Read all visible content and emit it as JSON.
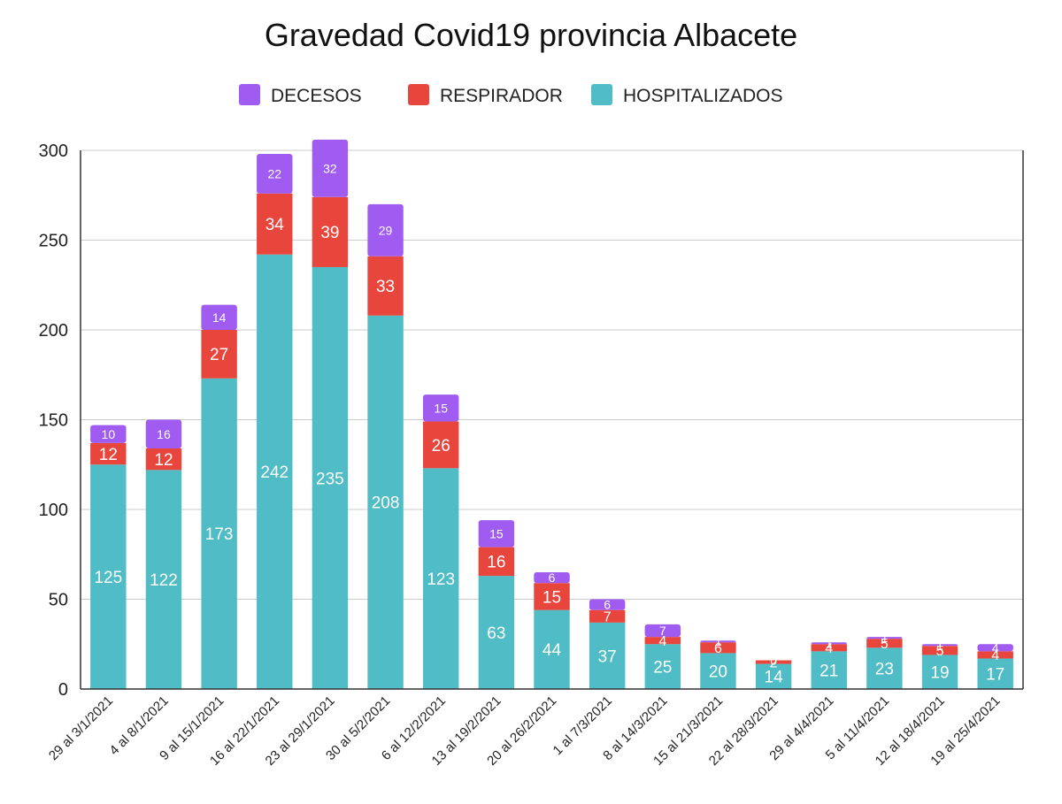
{
  "chart_data": {
    "type": "bar",
    "stacked": true,
    "title": "Gravedad Covid19 provincia Albacete",
    "xlabel": "",
    "ylabel": "",
    "ylim": [
      0,
      300
    ],
    "yticks": [
      "0",
      "50",
      "100",
      "150",
      "200",
      "250",
      "300"
    ],
    "grid": true,
    "legend_position": "top",
    "categories": [
      "29 al 3/1/2021",
      "4 al 8/1/2021",
      "9 al 15/1/2021",
      "16 al 22/1/2021",
      "23 al 29/1/2021",
      "30 al 5/2/2021",
      "6 al 12/2/2021",
      "13 al 19/2/2021",
      "20 al 26/2/2021",
      "1 al 7/3/2021",
      "8 al 14/3/2021",
      "15 al 21/3/2021",
      "22 al 28/3/2021",
      "29 al 4/4/2021",
      "5 al 11/4/2021",
      "12 al 18/4/2021",
      "19 al 25/4/2021"
    ],
    "series": [
      {
        "name": "HOSPITALIZADOS",
        "color": "#4FBCC6",
        "values": [
          125,
          122,
          173,
          242,
          235,
          208,
          123,
          63,
          44,
          37,
          25,
          20,
          14,
          21,
          23,
          19,
          17
        ]
      },
      {
        "name": "RESPIRADOR",
        "color": "#E8453C",
        "values": [
          12,
          12,
          27,
          34,
          39,
          33,
          26,
          16,
          15,
          7,
          4,
          6,
          2,
          4,
          5,
          5,
          4
        ]
      },
      {
        "name": "DECESOS",
        "color": "#A05BF0",
        "values": [
          10,
          16,
          14,
          22,
          32,
          29,
          15,
          15,
          6,
          6,
          7,
          1,
          0,
          1,
          1,
          1,
          4
        ]
      }
    ],
    "legend_order": [
      "DECESOS",
      "RESPIRADOR",
      "HOSPITALIZADOS"
    ]
  }
}
